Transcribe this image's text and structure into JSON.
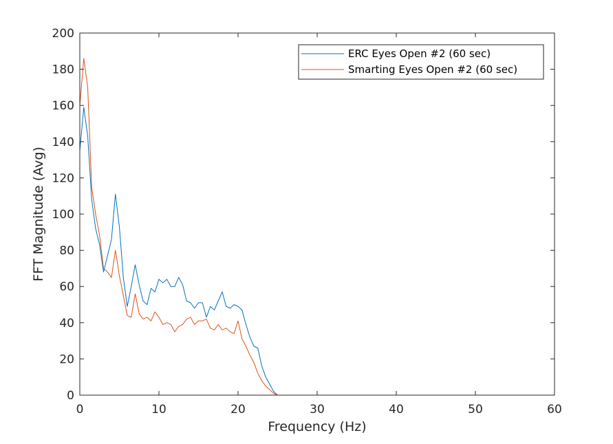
{
  "chart_data": {
    "type": "line",
    "xlabel": "Frequency (Hz)",
    "ylabel": "FFT Magnitude (Avg)",
    "xlim": [
      0,
      60
    ],
    "ylim": [
      0,
      200
    ],
    "xticks": [
      0,
      10,
      20,
      30,
      40,
      50,
      60
    ],
    "yticks": [
      0,
      20,
      40,
      60,
      80,
      100,
      120,
      140,
      160,
      180,
      200
    ],
    "grid": false,
    "legend_position": "top-right",
    "series": [
      {
        "name": "ERC Eyes Open #2 (60 sec)",
        "color": "#0072BD",
        "x": [
          0,
          0.5,
          1,
          1.5,
          2,
          2.5,
          3,
          3.5,
          4,
          4.5,
          5,
          5.5,
          6,
          6.5,
          7,
          7.5,
          8,
          8.5,
          9,
          9.5,
          10,
          10.5,
          11,
          11.5,
          12,
          12.5,
          13,
          13.5,
          14,
          14.5,
          15,
          15.5,
          16,
          16.5,
          17,
          17.5,
          18,
          18.5,
          19,
          19.5,
          20,
          20.5,
          21,
          21.5,
          22,
          22.5,
          23,
          23.5,
          24,
          24.5,
          25,
          25.5,
          60
        ],
        "y": [
          135,
          159,
          143,
          108,
          92,
          83,
          68,
          77,
          86,
          111,
          93,
          65,
          49,
          60,
          72,
          61,
          52,
          50,
          59,
          57,
          64,
          62,
          64,
          60,
          60,
          65,
          61,
          52,
          51,
          48,
          51,
          51,
          43,
          49,
          47,
          52,
          57,
          49,
          48,
          50,
          49,
          47,
          39,
          32,
          27,
          26,
          16,
          10,
          6,
          2,
          0,
          0,
          0
        ]
      },
      {
        "name": "Smarting Eyes Open #2 (60 sec)",
        "color": "#D95319",
        "x": [
          0,
          0.5,
          1,
          1.5,
          2,
          2.5,
          3,
          3.5,
          4,
          4.5,
          5,
          5.5,
          6,
          6.5,
          7,
          7.5,
          8,
          8.5,
          9,
          9.5,
          10,
          10.5,
          11,
          11.5,
          12,
          12.5,
          13,
          13.5,
          14,
          14.5,
          15,
          15.5,
          16,
          16.5,
          17,
          17.5,
          18,
          18.5,
          19,
          19.5,
          20,
          20.5,
          21,
          21.5,
          22,
          22.5,
          23,
          23.5,
          24,
          24.5,
          25,
          25.5,
          60
        ],
        "y": [
          160,
          186,
          170,
          115,
          100,
          88,
          70,
          68,
          65,
          80,
          66,
          55,
          44,
          43,
          56,
          45,
          42,
          43,
          41,
          46,
          43,
          39,
          40,
          39,
          35,
          38,
          39,
          42,
          43,
          39,
          41,
          41,
          42,
          37,
          36,
          39,
          36,
          37,
          35,
          34,
          41,
          31,
          27,
          22,
          18,
          12,
          8,
          5,
          3,
          1,
          0,
          0,
          0
        ]
      }
    ]
  }
}
